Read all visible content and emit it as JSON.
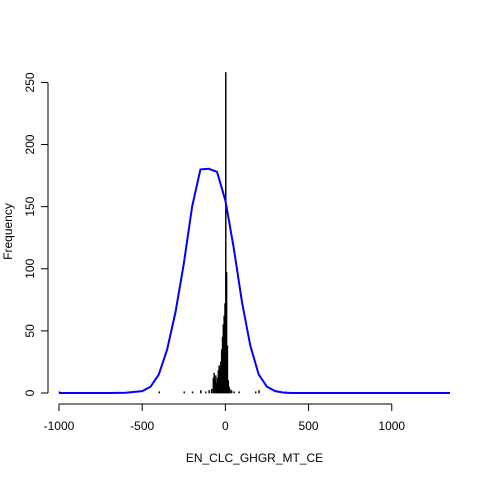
{
  "chart_data": {
    "type": "bar",
    "title": "",
    "xlabel": "EN_CLC_GHGR_MT_CE",
    "ylabel": "Frequency",
    "xlim": [
      -1000,
      1350
    ],
    "ylim": [
      0,
      260
    ],
    "x_ticks": [
      -1000,
      -500,
      0,
      500,
      1000
    ],
    "x_tick_labels": [
      "-1000",
      "-500",
      "0",
      "500",
      "1000"
    ],
    "y_ticks": [
      0,
      50,
      100,
      150,
      200,
      250
    ],
    "y_tick_labels": [
      "0",
      "50",
      "100",
      "150",
      "200",
      "250"
    ],
    "grid": false,
    "histogram": {
      "bin_width": 5,
      "bins": [
        {
          "x": -1000,
          "count": 1
        },
        {
          "x": -400,
          "count": 1
        },
        {
          "x": -250,
          "count": 1
        },
        {
          "x": -200,
          "count": 1
        },
        {
          "x": -150,
          "count": 2
        },
        {
          "x": -120,
          "count": 1
        },
        {
          "x": -100,
          "count": 2
        },
        {
          "x": -85,
          "count": 3
        },
        {
          "x": -75,
          "count": 12
        },
        {
          "x": -70,
          "count": 16
        },
        {
          "x": -65,
          "count": 10
        },
        {
          "x": -60,
          "count": 14
        },
        {
          "x": -55,
          "count": 8
        },
        {
          "x": -50,
          "count": 12
        },
        {
          "x": -45,
          "count": 18
        },
        {
          "x": -40,
          "count": 22
        },
        {
          "x": -35,
          "count": 20
        },
        {
          "x": -30,
          "count": 25
        },
        {
          "x": -25,
          "count": 35
        },
        {
          "x": -20,
          "count": 45
        },
        {
          "x": -15,
          "count": 55
        },
        {
          "x": -10,
          "count": 62
        },
        {
          "x": -5,
          "count": 72
        },
        {
          "x": 0,
          "count": 258
        },
        {
          "x": 5,
          "count": 97
        },
        {
          "x": 10,
          "count": 38
        },
        {
          "x": 15,
          "count": 10
        },
        {
          "x": 20,
          "count": 5
        },
        {
          "x": 25,
          "count": 3
        },
        {
          "x": 35,
          "count": 2
        },
        {
          "x": 50,
          "count": 1
        },
        {
          "x": 80,
          "count": 1
        },
        {
          "x": 180,
          "count": 1
        },
        {
          "x": 200,
          "count": 2
        },
        {
          "x": 360,
          "count": 1
        }
      ]
    },
    "density_curve": {
      "color": "#0000ff",
      "points": [
        [
          -1000,
          0
        ],
        [
          -900,
          0
        ],
        [
          -800,
          0
        ],
        [
          -700,
          0
        ],
        [
          -600,
          0.2
        ],
        [
          -500,
          1.5
        ],
        [
          -450,
          5
        ],
        [
          -400,
          15
        ],
        [
          -350,
          35
        ],
        [
          -300,
          65
        ],
        [
          -250,
          104
        ],
        [
          -200,
          150
        ],
        [
          -150,
          180
        ],
        [
          -100,
          180.5
        ],
        [
          -50,
          178
        ],
        [
          0,
          155
        ],
        [
          50,
          117
        ],
        [
          100,
          73
        ],
        [
          150,
          38
        ],
        [
          200,
          15
        ],
        [
          250,
          5
        ],
        [
          300,
          1.5
        ],
        [
          350,
          0.3
        ],
        [
          400,
          0
        ],
        [
          500,
          0
        ],
        [
          700,
          0
        ],
        [
          900,
          0
        ],
        [
          1100,
          0
        ],
        [
          1350,
          0
        ]
      ]
    }
  }
}
